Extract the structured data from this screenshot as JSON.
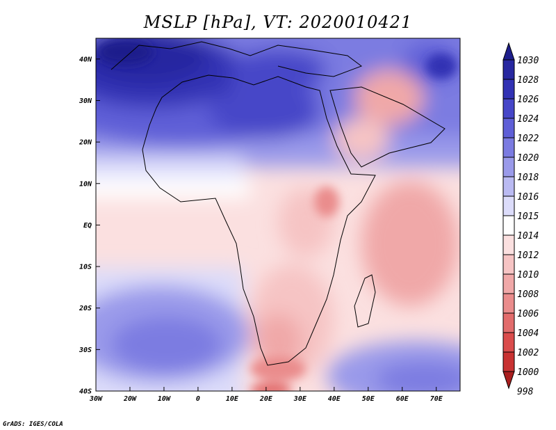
{
  "title": "MSLP [hPa], VT: 2020010421",
  "credit": "GrADS: IGES/COLA",
  "map": {
    "lon_range": [
      -30,
      77
    ],
    "lat_range": [
      -40,
      45
    ],
    "lon_ticks": [
      {
        "value": -30,
        "label": "30W"
      },
      {
        "value": -20,
        "label": "20W"
      },
      {
        "value": -10,
        "label": "10W"
      },
      {
        "value": 0,
        "label": "0"
      },
      {
        "value": 10,
        "label": "10E"
      },
      {
        "value": 20,
        "label": "20E"
      },
      {
        "value": 30,
        "label": "30E"
      },
      {
        "value": 40,
        "label": "40E"
      },
      {
        "value": 50,
        "label": "50E"
      },
      {
        "value": 60,
        "label": "60E"
      },
      {
        "value": 70,
        "label": "70E"
      }
    ],
    "lat_ticks": [
      {
        "value": 40,
        "label": "40N"
      },
      {
        "value": 30,
        "label": "30N"
      },
      {
        "value": 20,
        "label": "20N"
      },
      {
        "value": 10,
        "label": "10N"
      },
      {
        "value": 0,
        "label": "EQ"
      },
      {
        "value": -10,
        "label": "10S"
      },
      {
        "value": -20,
        "label": "20S"
      },
      {
        "value": -30,
        "label": "30S"
      },
      {
        "value": -40,
        "label": "40S"
      }
    ]
  },
  "colorbar": {
    "levels": [
      {
        "label": "1030",
        "color": "#1e1e8c"
      },
      {
        "label": "1028",
        "color": "#2828a0"
      },
      {
        "label": "1026",
        "color": "#3232b4"
      },
      {
        "label": "1024",
        "color": "#4646c8"
      },
      {
        "label": "1022",
        "color": "#5f5fd7"
      },
      {
        "label": "1020",
        "color": "#7b7be1"
      },
      {
        "label": "1018",
        "color": "#9a9aea"
      },
      {
        "label": "1016",
        "color": "#babaf2"
      },
      {
        "label": "1015",
        "color": "#dcdcfa"
      },
      {
        "label": "1014",
        "color": "#ffffff"
      },
      {
        "label": "1012",
        "color": "#fbe0e0"
      },
      {
        "label": "1010",
        "color": "#f6c4c4"
      },
      {
        "label": "1008",
        "color": "#f0a8a8"
      },
      {
        "label": "1006",
        "color": "#ea8c8c"
      },
      {
        "label": "1004",
        "color": "#e26c6c"
      },
      {
        "label": "1002",
        "color": "#da4c4c"
      },
      {
        "label": "1000",
        "color": "#c83232"
      },
      {
        "label": "998",
        "color": "#aa1e1e"
      }
    ]
  }
}
